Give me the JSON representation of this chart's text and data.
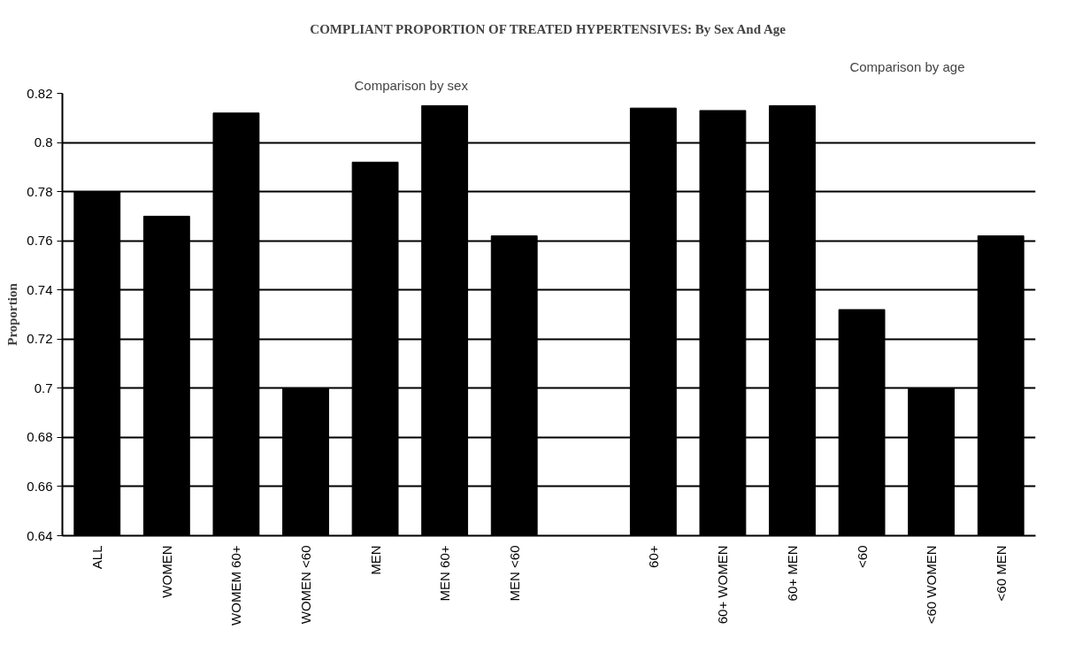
{
  "chart_data": {
    "type": "bar",
    "title": "COMPLIANT PROPORTION OF TREATED HYPERTENSIVES: By Sex And Age",
    "ylabel": "Proportion",
    "categories": [
      "ALL",
      "WOMEN",
      "WOMEM 60+",
      "WOMEN <60",
      "MEN",
      "MEN 60+",
      "MEN <60",
      null,
      "60+",
      "60+ WOMEN",
      "60+ MEN",
      "<60",
      "<60 WOMEN",
      "<60 MEN"
    ],
    "values": [
      0.78,
      0.77,
      0.812,
      0.7,
      0.792,
      0.815,
      0.762,
      null,
      0.814,
      0.813,
      0.815,
      0.732,
      0.7,
      0.762
    ],
    "color": "#000000",
    "ylim": [
      0.64,
      0.82
    ],
    "yticks": [
      0.64,
      0.66,
      0.68,
      0.7,
      0.72,
      0.74,
      0.76,
      0.78,
      0.8,
      0.82
    ],
    "grid": "y",
    "annotations": [
      "Comparison by sex",
      "Comparison by age"
    ]
  }
}
